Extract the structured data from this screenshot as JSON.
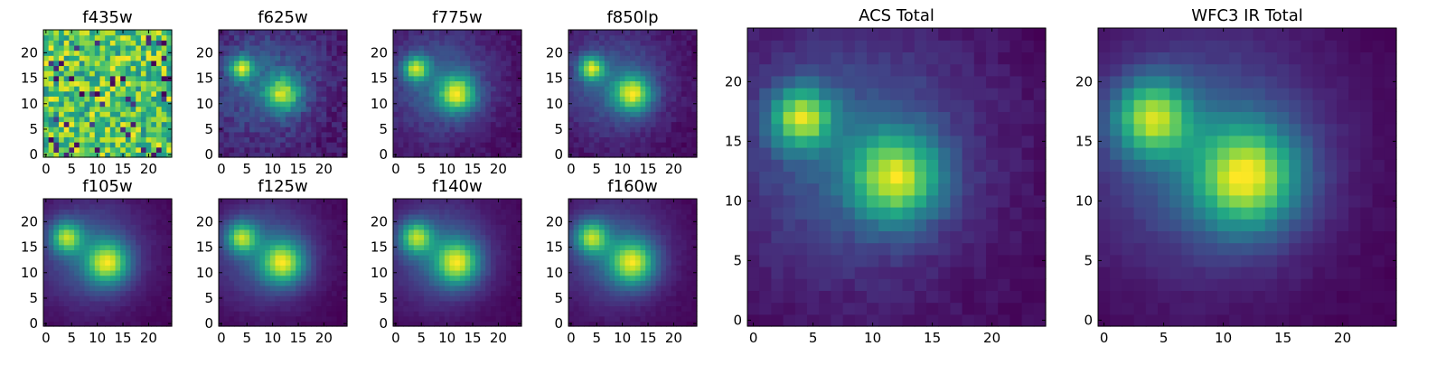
{
  "figure": {
    "colormap": "viridis",
    "background": "#ffffff"
  },
  "chart_data": [
    {
      "type": "heatmap",
      "title": "f435w",
      "grid_size": 25,
      "xticks": [
        0,
        5,
        10,
        15,
        20
      ],
      "yticks": [
        0,
        5,
        10,
        15,
        20
      ],
      "noise": "uniform",
      "sources": []
    },
    {
      "type": "heatmap",
      "title": "f625w",
      "grid_size": 25,
      "xticks": [
        0,
        5,
        10,
        15,
        20
      ],
      "yticks": [
        0,
        5,
        10,
        15,
        20
      ],
      "sources": [
        {
          "x": 4,
          "y": 17,
          "amp": 0.9,
          "sigma": 1.6
        },
        {
          "x": 12,
          "y": 12,
          "amp": 0.85,
          "sigma": 2.4
        }
      ],
      "bg": 0.25,
      "noise_amp": 0.18
    },
    {
      "type": "heatmap",
      "title": "f775w",
      "grid_size": 25,
      "xticks": [
        0,
        5,
        10,
        15,
        20
      ],
      "yticks": [
        0,
        5,
        10,
        15,
        20
      ],
      "sources": [
        {
          "x": 4,
          "y": 17,
          "amp": 0.9,
          "sigma": 1.7
        },
        {
          "x": 12,
          "y": 12,
          "amp": 0.9,
          "sigma": 2.5
        }
      ],
      "bg": 0.22,
      "noise_amp": 0.1
    },
    {
      "type": "heatmap",
      "title": "f850lp",
      "grid_size": 25,
      "xticks": [
        0,
        5,
        10,
        15,
        20
      ],
      "yticks": [
        0,
        5,
        10,
        15,
        20
      ],
      "sources": [
        {
          "x": 4,
          "y": 17,
          "amp": 0.9,
          "sigma": 1.7
        },
        {
          "x": 12,
          "y": 12,
          "amp": 0.9,
          "sigma": 2.5
        }
      ],
      "bg": 0.2,
      "noise_amp": 0.1
    },
    {
      "type": "heatmap",
      "title": "f105w",
      "grid_size": 25,
      "xticks": [
        0,
        5,
        10,
        15,
        20
      ],
      "yticks": [
        0,
        5,
        10,
        15,
        20
      ],
      "sources": [
        {
          "x": 4,
          "y": 17,
          "amp": 0.85,
          "sigma": 2.1
        },
        {
          "x": 12,
          "y": 12,
          "amp": 0.9,
          "sigma": 2.9
        }
      ],
      "bg": 0.2,
      "noise_amp": 0.04
    },
    {
      "type": "heatmap",
      "title": "f125w",
      "grid_size": 25,
      "xticks": [
        0,
        5,
        10,
        15,
        20
      ],
      "yticks": [
        0,
        5,
        10,
        15,
        20
      ],
      "sources": [
        {
          "x": 4,
          "y": 17,
          "amp": 0.85,
          "sigma": 2.1
        },
        {
          "x": 12,
          "y": 12,
          "amp": 0.9,
          "sigma": 2.9
        }
      ],
      "bg": 0.2,
      "noise_amp": 0.04
    },
    {
      "type": "heatmap",
      "title": "f140w",
      "grid_size": 25,
      "xticks": [
        0,
        5,
        10,
        15,
        20
      ],
      "yticks": [
        0,
        5,
        10,
        15,
        20
      ],
      "sources": [
        {
          "x": 4,
          "y": 17,
          "amp": 0.85,
          "sigma": 2.2
        },
        {
          "x": 12,
          "y": 12,
          "amp": 0.9,
          "sigma": 3.0
        }
      ],
      "bg": 0.2,
      "noise_amp": 0.04
    },
    {
      "type": "heatmap",
      "title": "f160w",
      "grid_size": 25,
      "xticks": [
        0,
        5,
        10,
        15,
        20
      ],
      "yticks": [
        0,
        5,
        10,
        15,
        20
      ],
      "sources": [
        {
          "x": 4,
          "y": 17,
          "amp": 0.85,
          "sigma": 2.2
        },
        {
          "x": 12,
          "y": 12,
          "amp": 0.9,
          "sigma": 3.0
        }
      ],
      "bg": 0.2,
      "noise_amp": 0.04
    },
    {
      "type": "heatmap",
      "title": "ACS Total",
      "grid_size": 25,
      "xticks": [
        0,
        5,
        10,
        15,
        20
      ],
      "yticks": [
        0,
        5,
        10,
        15,
        20
      ],
      "sources": [
        {
          "x": 4,
          "y": 17,
          "amp": 0.9,
          "sigma": 1.8
        },
        {
          "x": 12,
          "y": 12,
          "amp": 0.9,
          "sigma": 2.6
        }
      ],
      "bg": 0.2,
      "noise_amp": 0.08
    },
    {
      "type": "heatmap",
      "title": "WFC3 IR Total",
      "grid_size": 25,
      "xticks": [
        0,
        5,
        10,
        15,
        20
      ],
      "yticks": [
        0,
        5,
        10,
        15,
        20
      ],
      "sources": [
        {
          "x": 4,
          "y": 17,
          "amp": 0.85,
          "sigma": 2.2
        },
        {
          "x": 12,
          "y": 12,
          "amp": 0.9,
          "sigma": 3.0
        }
      ],
      "bg": 0.2,
      "noise_amp": 0.04
    }
  ]
}
